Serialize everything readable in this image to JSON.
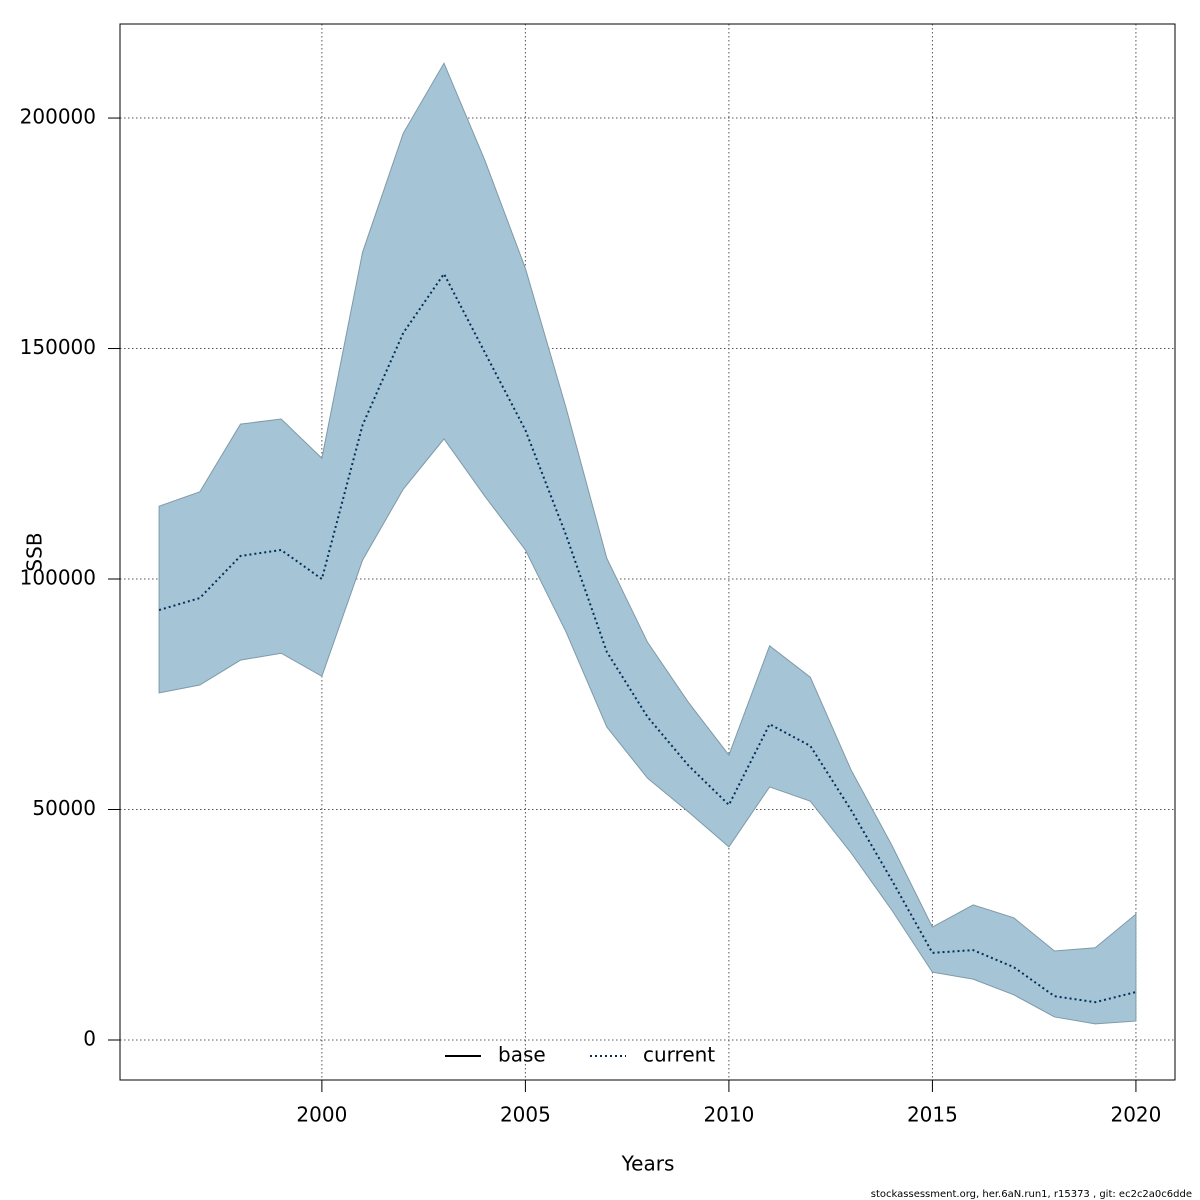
{
  "chart_data": {
    "type": "line",
    "xlabel": "Years",
    "ylabel": "SSB",
    "x": [
      1996,
      1997,
      1998,
      1999,
      2000,
      2001,
      2002,
      2003,
      2004,
      2005,
      2006,
      2007,
      2008,
      2009,
      2010,
      2011,
      2012,
      2013,
      2014,
      2015,
      2016,
      2017,
      2018,
      2019,
      2020
    ],
    "series": [
      {
        "name": "current",
        "color": "#00305a",
        "dash": "dotted",
        "values": [
          93270,
          95870,
          105000,
          106300,
          100000,
          133400,
          153400,
          166200,
          149200,
          132300,
          109500,
          84200,
          70100,
          59600,
          51000,
          68500,
          63800,
          49900,
          34700,
          18900,
          19500,
          15800,
          9500,
          8200,
          10400
        ]
      }
    ],
    "band": {
      "color": "#a5c4d5",
      "upper": [
        115800,
        118900,
        133600,
        134700,
        126200,
        170900,
        196700,
        211900,
        190900,
        167400,
        137100,
        104500,
        86300,
        73300,
        61800,
        85500,
        78700,
        58600,
        42300,
        24500,
        29300,
        26500,
        19300,
        20000,
        27300
      ],
      "lower": [
        75300,
        77000,
        82400,
        83900,
        78900,
        104100,
        119500,
        130400,
        118000,
        106300,
        88500,
        67900,
        56800,
        49500,
        41900,
        54900,
        51800,
        40600,
        28200,
        14700,
        13200,
        9800,
        5000,
        3500,
        4100
      ]
    },
    "legend": [
      {
        "name": "base",
        "color": "#000000",
        "dash": "solid"
      },
      {
        "name": "current",
        "color": "#00305a",
        "dash": "dotted"
      }
    ],
    "xlim": [
      1995.04,
      2020.96
    ],
    "xticks": [
      2000,
      2005,
      2010,
      2015,
      2020
    ],
    "ylim": [
      -8680,
      220400
    ],
    "yticks": [
      0,
      50000,
      100000,
      150000,
      200000
    ],
    "grid": true,
    "footnote": "stockassessment.org, her.6aN.run1, r15373 , git: ec2c2a0c6dde"
  }
}
